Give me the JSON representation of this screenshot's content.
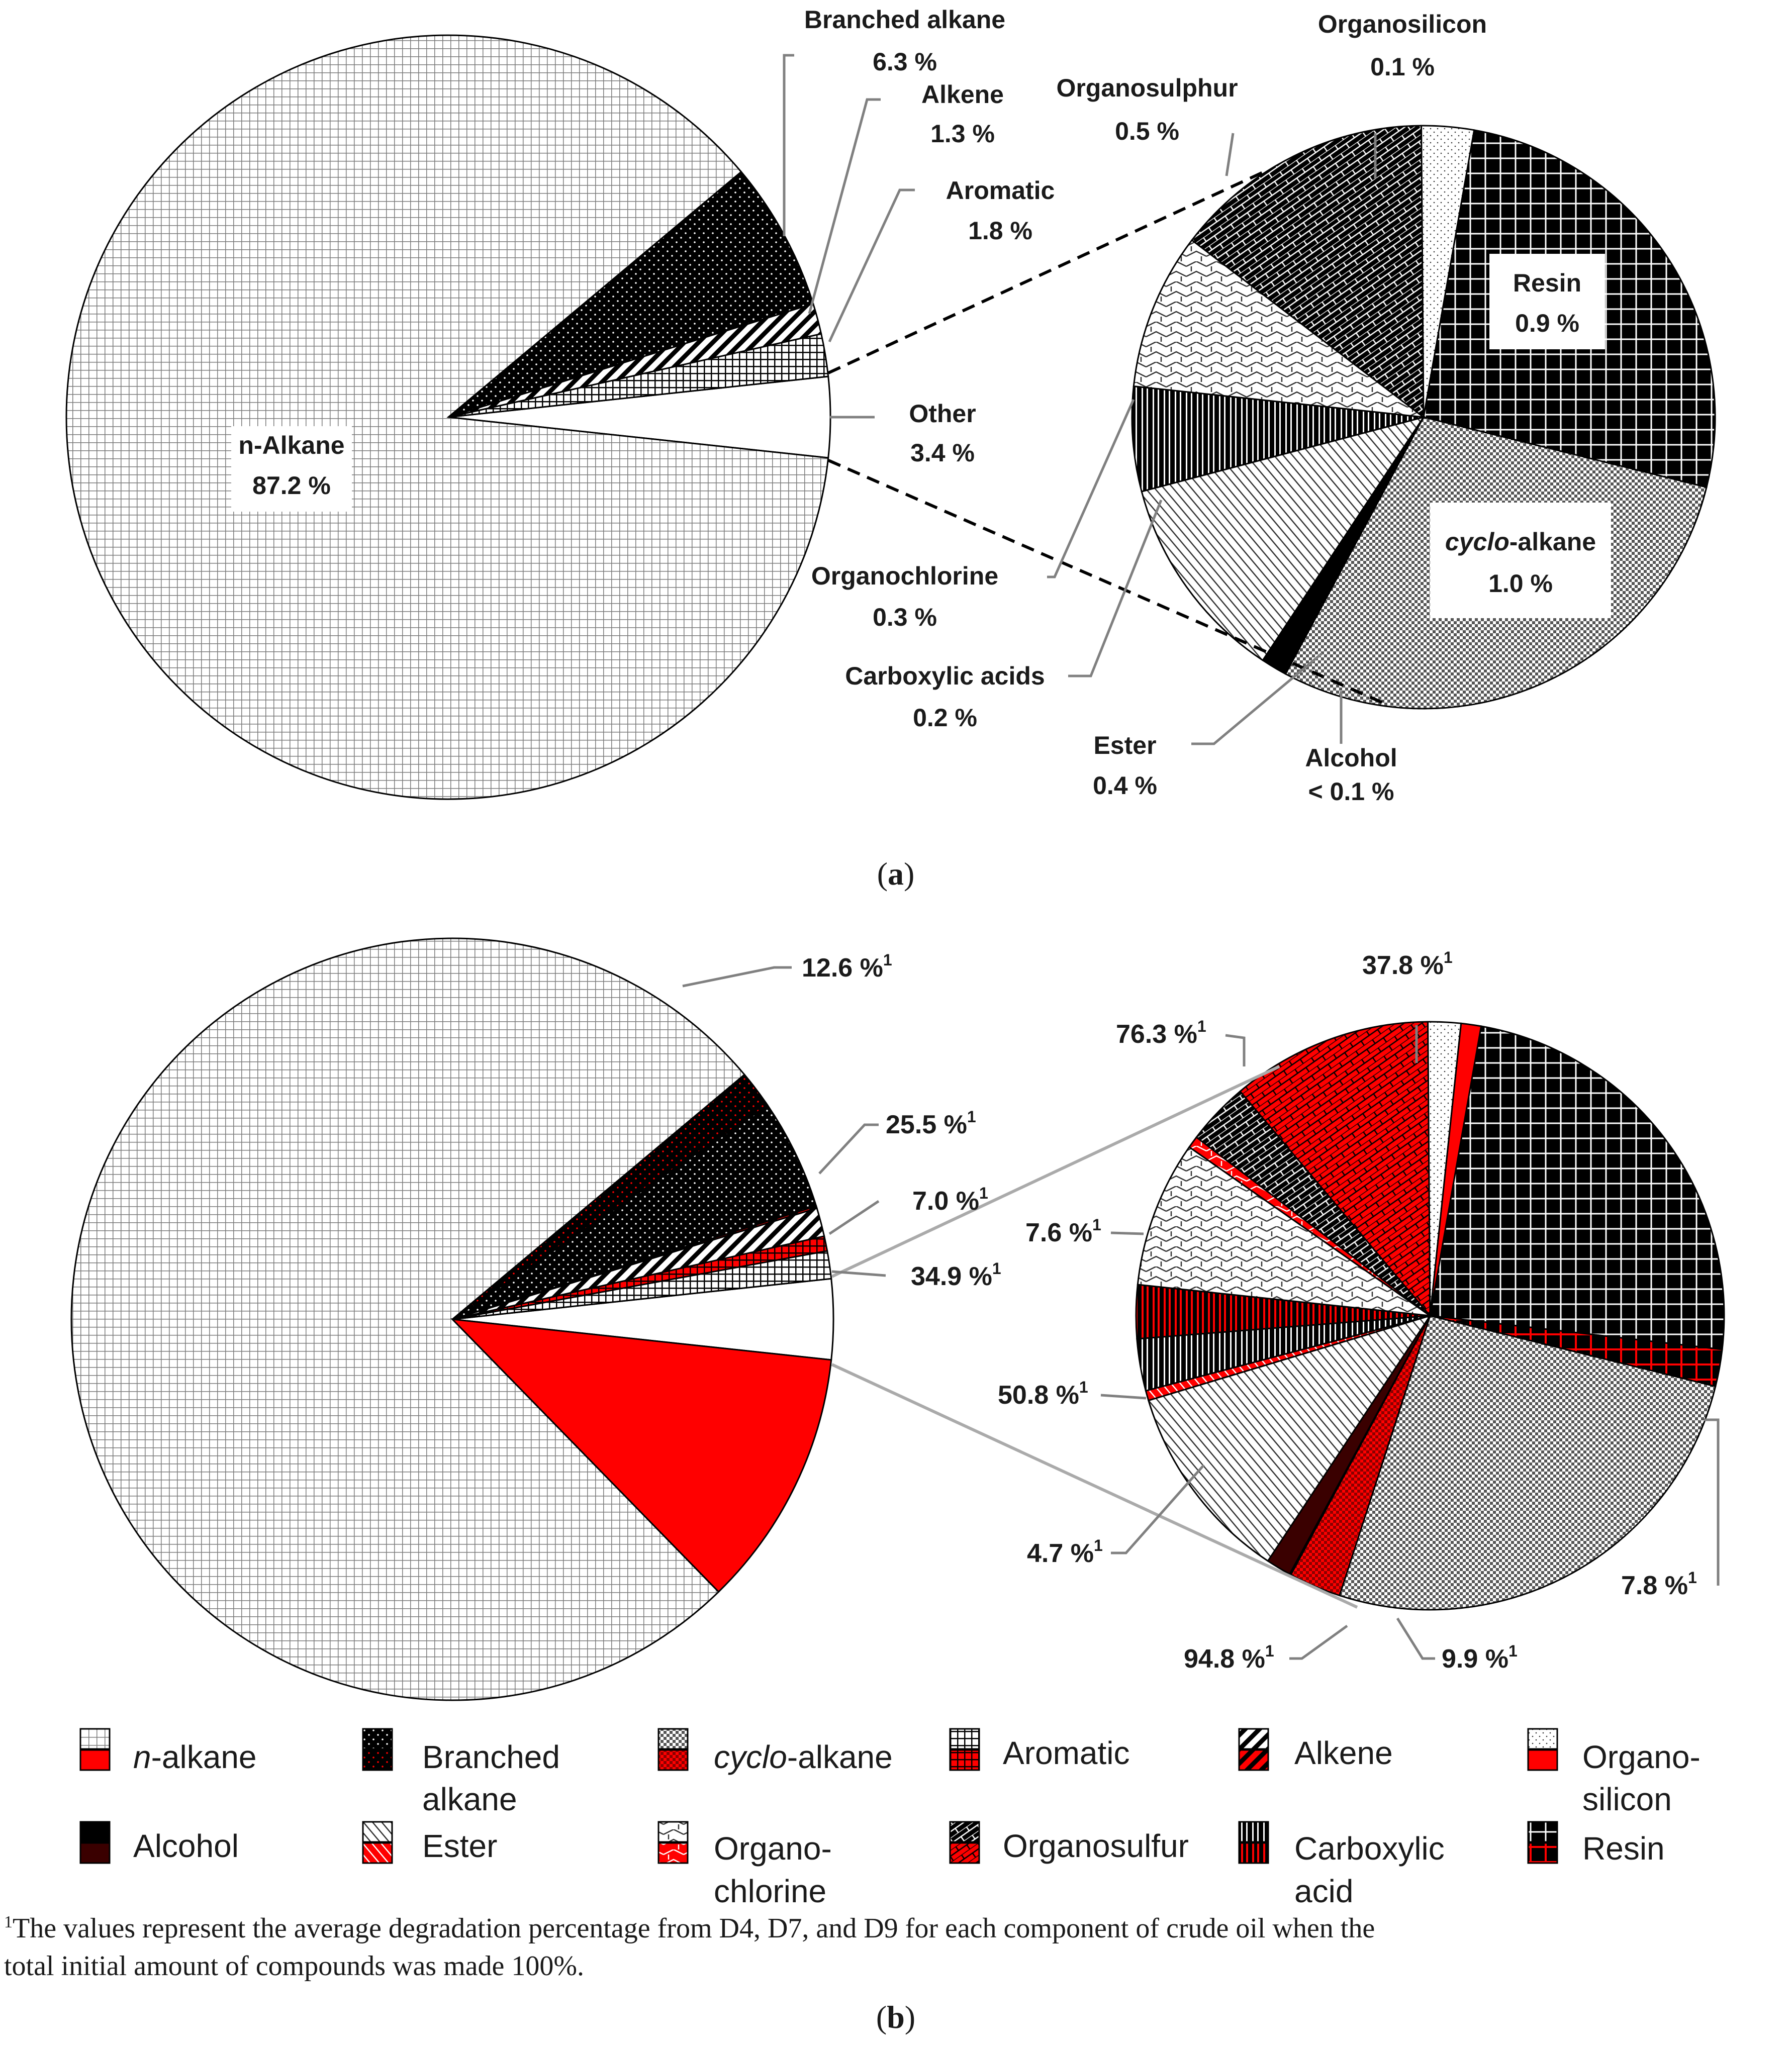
{
  "chart_data": [
    {
      "type": "pie",
      "panel": "(a)",
      "title": "",
      "main_pie": {
        "slices": [
          {
            "name": "n-Alkane",
            "value": 87.2,
            "label": "87.2 %"
          },
          {
            "name": "Branched alkane",
            "value": 6.3,
            "label": "6.3 %"
          },
          {
            "name": "Alkene",
            "value": 1.3,
            "label": "1.3 %"
          },
          {
            "name": "Aromatic",
            "value": 1.8,
            "label": "1.8 %"
          },
          {
            "name": "Other",
            "value": 3.4,
            "label": "3.4 %"
          }
        ]
      },
      "other_breakdown": {
        "slices": [
          {
            "name": "Resin",
            "value": 0.9,
            "label": "0.9 %"
          },
          {
            "name": "cyclo-alkane",
            "value": 1.0,
            "label": "1.0 %"
          },
          {
            "name": "Alcohol",
            "value": 0.05,
            "label": "< 0.1 %"
          },
          {
            "name": "Ester",
            "value": 0.4,
            "label": "0.4 %"
          },
          {
            "name": "Carboxylic acids",
            "value": 0.2,
            "label": "0.2 %"
          },
          {
            "name": "Organochlorine",
            "value": 0.3,
            "label": "0.3 %"
          },
          {
            "name": "Organosulphur",
            "value": 0.5,
            "label": "0.5 %"
          },
          {
            "name": "Organosilicon",
            "value": 0.1,
            "label": "0.1 %"
          }
        ]
      }
    },
    {
      "type": "pie",
      "panel": "(b)",
      "title": "",
      "degradation_percent": [
        {
          "component": "n-alkane",
          "value": 12.6,
          "label": "12.6 %"
        },
        {
          "component": "Branched alkane",
          "value": 25.5,
          "label": "25.5 %"
        },
        {
          "component": "Alkene",
          "value": 7.0,
          "label": "7.0 %"
        },
        {
          "component": "Aromatic",
          "value": 34.9,
          "label": "34.9 %"
        },
        {
          "component": "Organosilicon",
          "value": 37.8,
          "label": "37.8 %"
        },
        {
          "component": "Organosulfur",
          "value": 76.3,
          "label": "76.3 %"
        },
        {
          "component": "Organochlorine",
          "value": 7.6,
          "label": "7.6 %"
        },
        {
          "component": "Carboxylic acid",
          "value": 50.8,
          "label": "50.8 %"
        },
        {
          "component": "Ester",
          "value": 4.7,
          "label": "4.7 %"
        },
        {
          "component": "Alcohol",
          "value": 94.8,
          "label": "94.8 %"
        },
        {
          "component": "cyclo-alkane",
          "value": 9.9,
          "label": "9.9 %"
        },
        {
          "component": "Resin",
          "value": 7.8,
          "label": "7.8 %"
        }
      ],
      "legend": [
        "n-alkane",
        "Branched alkane",
        "cyclo-alkane",
        "Aromatic",
        "Alkene",
        "Organo-silicon",
        "Alcohol",
        "Ester",
        "Organo-chlorine",
        "Organosulfur",
        "Carboxylic acid",
        "Resin"
      ]
    }
  ],
  "labels_a": {
    "n_alkane_name": "n-Alkane",
    "n_alkane_val": "87.2 %",
    "branched_name": "Branched alkane",
    "branched_val": "6.3 %",
    "alkene_name": "Alkene",
    "alkene_val": "1.3 %",
    "aromatic_name": "Aromatic",
    "aromatic_val": "1.8 %",
    "other_name": "Other",
    "other_val": "3.4 %",
    "organosilicon_name": "Organosilicon",
    "organosilicon_val": "0.1 %",
    "organosulphur_name": "Organosulphur",
    "organosulphur_val": "0.5 %",
    "resin_name": "Resin",
    "resin_val": "0.9 %",
    "cyclo_prefix": "cyclo",
    "cyclo_suffix": "-alkane",
    "cyclo_val": "1.0 %",
    "organochlorine_name": "Organochlorine",
    "organochlorine_val": "0.3 %",
    "carboxylic_name": "Carboxylic acids",
    "carboxylic_val": "0.2 %",
    "ester_name": "Ester",
    "ester_val": "0.4 %",
    "alcohol_name": "Alcohol",
    "alcohol_val": "< 0.1 %"
  },
  "labels_b": {
    "v126": "12.6 %",
    "v255": "25.5 %",
    "v70": "7.0 %",
    "v349": "34.9 %",
    "v378": "37.8 %",
    "v763": "76.3 %",
    "v76": "7.6 %",
    "v508": "50.8 %",
    "v47": "4.7 %",
    "v948": "94.8 %",
    "v99": "9.9 %",
    "v78": "7.8 %",
    "sup": "1"
  },
  "legend": {
    "n_alkane_it": "n",
    "n_alkane_rest": "-alkane",
    "branched_1": "Branched",
    "branched_2": "alkane",
    "cyclo_it": "cyclo",
    "cyclo_rest": "-alkane",
    "aromatic": "Aromatic",
    "alkene": "Alkene",
    "organosilicon_1": "Organo-",
    "organosilicon_2": "silicon",
    "alcohol": "Alcohol",
    "ester": "Ester",
    "organochlorine_1": "Organo-",
    "organochlorine_2": "chlorine",
    "organosulfur": "Organosulfur",
    "carboxylic_1": "Carboxylic",
    "carboxylic_2": "acid",
    "resin": "Resin"
  },
  "captions": {
    "a_open": "(",
    "a_letter": "a",
    "a_close": ")",
    "b_open": "(",
    "b_letter": "b",
    "b_close": ")",
    "footnote_sup": "1",
    "footnote_line1": "The values represent the average degradation percentage from D4, D7, and D9 for each component of crude oil when the",
    "footnote_line2": "total initial amount of compounds was made 100%."
  },
  "colors": {
    "degraded": "#ff0000",
    "black": "#000000",
    "white": "#ffffff"
  }
}
